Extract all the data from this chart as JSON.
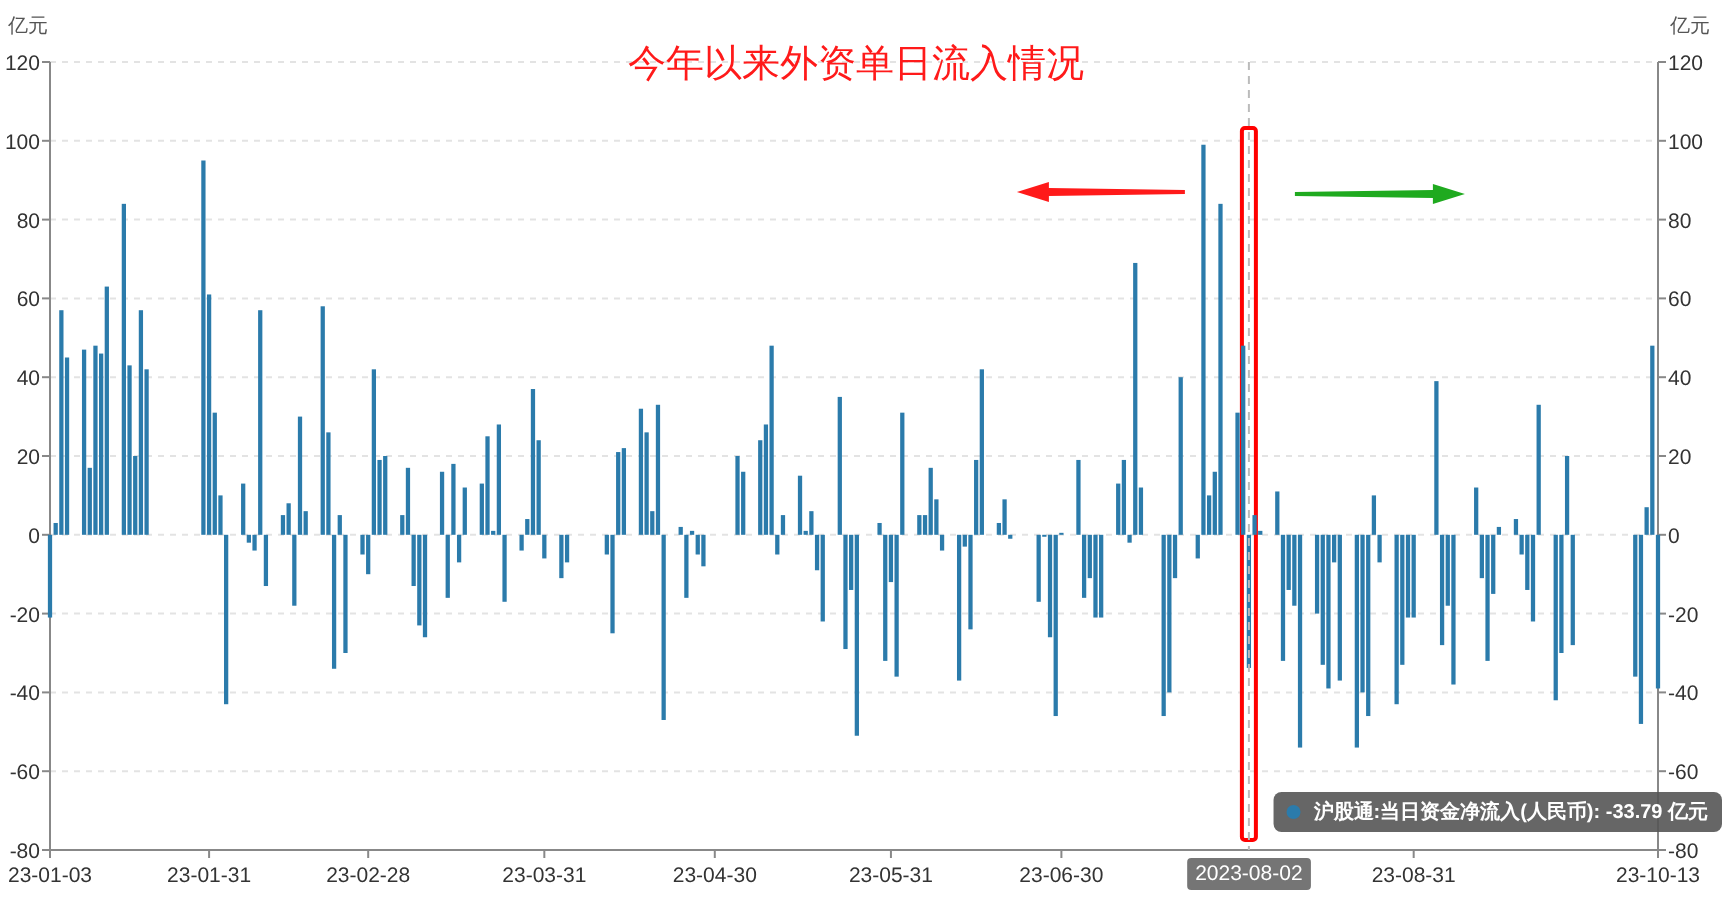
{
  "chart_data": {
    "type": "bar",
    "title": "今年以来外资单日流入情况",
    "ylabel": "亿元",
    "y2label": "亿元",
    "x": [
      "2023-01-03",
      "2023-01-04",
      "2023-01-05",
      "2023-01-06",
      "2023-01-09",
      "2023-01-10",
      "2023-01-11",
      "2023-01-12",
      "2023-01-13",
      "2023-01-16",
      "2023-01-17",
      "2023-01-18",
      "2023-01-19",
      "2023-01-20",
      "2023-01-30",
      "2023-01-31",
      "2023-02-01",
      "2023-02-02",
      "2023-02-03",
      "2023-02-06",
      "2023-02-07",
      "2023-02-08",
      "2023-02-09",
      "2023-02-10",
      "2023-02-13",
      "2023-02-14",
      "2023-02-15",
      "2023-02-16",
      "2023-02-17",
      "2023-02-20",
      "2023-02-21",
      "2023-02-22",
      "2023-02-23",
      "2023-02-24",
      "2023-02-27",
      "2023-02-28",
      "2023-03-01",
      "2023-03-02",
      "2023-03-03",
      "2023-03-06",
      "2023-03-07",
      "2023-03-08",
      "2023-03-09",
      "2023-03-10",
      "2023-03-13",
      "2023-03-14",
      "2023-03-15",
      "2023-03-16",
      "2023-03-17",
      "2023-03-20",
      "2023-03-21",
      "2023-03-22",
      "2023-03-23",
      "2023-03-24",
      "2023-03-27",
      "2023-03-28",
      "2023-03-29",
      "2023-03-30",
      "2023-03-31",
      "2023-04-03",
      "2023-04-04",
      "2023-04-11",
      "2023-04-12",
      "2023-04-13",
      "2023-04-14",
      "2023-04-17",
      "2023-04-18",
      "2023-04-19",
      "2023-04-20",
      "2023-04-21",
      "2023-04-24",
      "2023-04-25",
      "2023-04-26",
      "2023-04-27",
      "2023-04-28",
      "2023-05-04",
      "2023-05-05",
      "2023-05-08",
      "2023-05-09",
      "2023-05-10",
      "2023-05-11",
      "2023-05-12",
      "2023-05-15",
      "2023-05-16",
      "2023-05-17",
      "2023-05-18",
      "2023-05-19",
      "2023-05-22",
      "2023-05-23",
      "2023-05-24",
      "2023-05-25",
      "2023-05-29",
      "2023-05-30",
      "2023-05-31",
      "2023-06-01",
      "2023-06-02",
      "2023-06-05",
      "2023-06-06",
      "2023-06-07",
      "2023-06-08",
      "2023-06-09",
      "2023-06-12",
      "2023-06-13",
      "2023-06-14",
      "2023-06-15",
      "2023-06-16",
      "2023-06-19",
      "2023-06-20",
      "2023-06-21",
      "2023-06-26",
      "2023-06-27",
      "2023-06-28",
      "2023-06-29",
      "2023-06-30",
      "2023-07-03",
      "2023-07-04",
      "2023-07-05",
      "2023-07-06",
      "2023-07-07",
      "2023-07-10",
      "2023-07-11",
      "2023-07-12",
      "2023-07-13",
      "2023-07-14",
      "2023-07-18",
      "2023-07-19",
      "2023-07-20",
      "2023-07-21",
      "2023-07-24",
      "2023-07-25",
      "2023-07-26",
      "2023-07-27",
      "2023-07-28",
      "2023-07-31",
      "2023-08-01",
      "2023-08-02",
      "2023-08-03",
      "2023-08-04",
      "2023-08-07",
      "2023-08-08",
      "2023-08-09",
      "2023-08-10",
      "2023-08-11",
      "2023-08-14",
      "2023-08-15",
      "2023-08-16",
      "2023-08-17",
      "2023-08-18",
      "2023-08-21",
      "2023-08-22",
      "2023-08-23",
      "2023-08-24",
      "2023-08-25",
      "2023-08-28",
      "2023-08-29",
      "2023-08-30",
      "2023-08-31",
      "2023-09-04",
      "2023-09-05",
      "2023-09-06",
      "2023-09-07",
      "2023-09-11",
      "2023-09-12",
      "2023-09-13",
      "2023-09-14",
      "2023-09-15",
      "2023-09-18",
      "2023-09-19",
      "2023-09-20",
      "2023-09-21",
      "2023-09-22",
      "2023-09-25",
      "2023-09-26",
      "2023-09-27",
      "2023-09-28",
      "2023-10-09",
      "2023-10-10",
      "2023-10-11",
      "2023-10-12",
      "2023-10-13"
    ],
    "series": [
      {
        "color": "#2b7bab",
        "values": [
          -21,
          3,
          57,
          45,
          47,
          17,
          48,
          46,
          63,
          84,
          43,
          20,
          57,
          42,
          95,
          61,
          31,
          10,
          -43,
          13,
          -2,
          -4,
          57,
          -13,
          5,
          8,
          -18,
          30,
          6,
          58,
          26,
          -34,
          5,
          -30,
          -5,
          -10,
          42,
          19,
          20,
          5,
          17,
          -13,
          -23,
          -26,
          16,
          -16,
          18,
          -7,
          12,
          13,
          25,
          1,
          28,
          -17,
          -4,
          4,
          37,
          24,
          -6,
          -11,
          -7,
          -5,
          -25,
          21,
          22,
          32,
          26,
          6,
          33,
          -47,
          2,
          -16,
          1,
          -5,
          -8,
          20,
          16,
          24,
          28,
          48,
          -5,
          5,
          15,
          1,
          6,
          -9,
          -22,
          35,
          -29,
          -14,
          -51,
          3,
          -32,
          -12,
          -36,
          31,
          5,
          5,
          17,
          9,
          -4,
          -37,
          -3,
          -24,
          19,
          42,
          3,
          9,
          -1,
          -17,
          -0.5,
          -26,
          -46,
          0.5,
          19,
          -16,
          -11,
          -21,
          -21,
          13,
          19,
          -2,
          69,
          12,
          -46,
          -40,
          -11,
          40,
          -6,
          99,
          10,
          16,
          84,
          31,
          48,
          -33.79,
          5,
          1,
          11,
          -32,
          -14,
          -18,
          -54,
          -20,
          -33,
          -39,
          -7,
          -37,
          -54,
          -40,
          -46,
          10,
          -7,
          -43,
          -33,
          -21,
          -21,
          39,
          -28,
          -18,
          -38,
          12,
          -11,
          -32,
          -15,
          2,
          4,
          -5,
          -14,
          -22,
          33,
          -42,
          -30,
          20,
          -28,
          -36,
          -48,
          7,
          48,
          -39
        ]
      }
    ],
    "xlim": [
      "2023-01-03",
      "2023-10-13"
    ],
    "xticks": [
      {
        "value": "2023-01-03",
        "label": "23-01-03"
      },
      {
        "value": "2023-01-31",
        "label": "23-01-31"
      },
      {
        "value": "2023-02-28",
        "label": "23-02-28"
      },
      {
        "value": "2023-03-31",
        "label": "23-03-31"
      },
      {
        "value": "2023-04-30",
        "label": "23-04-30"
      },
      {
        "value": "2023-05-31",
        "label": "23-05-31"
      },
      {
        "value": "2023-06-30",
        "label": "23-06-30"
      },
      {
        "value": "2023-08-31",
        "label": "23-08-31"
      },
      {
        "value": "2023-10-13",
        "label": "23-10-13"
      }
    ],
    "ylim": [
      -80,
      120
    ],
    "yticks": [
      -80,
      -60,
      -40,
      -20,
      0,
      20,
      40,
      60,
      80,
      100,
      120
    ],
    "y2lim": [
      -80,
      120
    ],
    "y2ticks": [
      -80,
      -60,
      -40,
      -20,
      0,
      20,
      40,
      60,
      80,
      100,
      120
    ],
    "grid": "y",
    "ref_lines": [
      {
        "axis": "x",
        "value": "2023-08-02",
        "label": "2023-08-02",
        "color": "#bbbbbb",
        "line_style": "dashed"
      }
    ],
    "annotations": [
      "沪股通:当日资金净流入(人民币): -33.79  亿元"
    ]
  }
}
